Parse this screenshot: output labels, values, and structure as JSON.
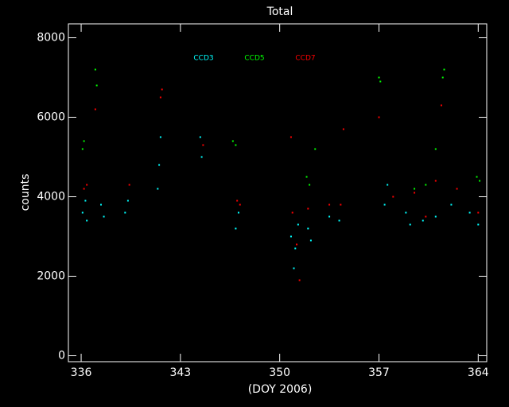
{
  "chart_data": {
    "type": "scatter",
    "title": "Total",
    "x_label": "(DOY 2006)",
    "y_label": "counts",
    "xlim": [
      335.1,
      364.6
    ],
    "ylim": [
      -150,
      8350
    ],
    "xticks": [
      336,
      343,
      350,
      357,
      364
    ],
    "yticks": [
      0,
      2000,
      4000,
      6000,
      8000
    ],
    "series": [
      {
        "name": "CCD3",
        "color": "#00ffff",
        "x": [
          336.1,
          336.3,
          336.4,
          337.4,
          337.6,
          339.1,
          339.3,
          341.4,
          341.5,
          341.6,
          344.4,
          344.5,
          346.9,
          347.1,
          350.8,
          351.0,
          351.1,
          351.3,
          352.0,
          352.2,
          353.5,
          354.2,
          357.4,
          357.6,
          358.9,
          359.2,
          360.1,
          361.0,
          362.1,
          363.4,
          364.0
        ],
        "values": [
          3600,
          3900,
          3400,
          3800,
          3500,
          3600,
          3900,
          4200,
          4800,
          5500,
          5500,
          5000,
          3200,
          3600,
          3000,
          2200,
          2700,
          3300,
          3200,
          2900,
          3500,
          3400,
          3800,
          4300,
          3600,
          3300,
          3400,
          3500,
          3800,
          3600,
          3300
        ]
      },
      {
        "name": "CCD5",
        "color": "#00ff00",
        "x": [
          336.1,
          336.2,
          337.0,
          337.1,
          346.7,
          346.9,
          351.9,
          352.1,
          352.5,
          357.0,
          357.1,
          359.5,
          360.3,
          361.0,
          361.5,
          361.6,
          363.9,
          364.1
        ],
        "values": [
          5200,
          5400,
          7200,
          6800,
          5400,
          5300,
          4500,
          4300,
          5200,
          7000,
          6900,
          4200,
          4300,
          5200,
          7000,
          7200,
          4500,
          4400
        ]
      },
      {
        "name": "CCD7",
        "color": "#ff0000",
        "x": [
          336.2,
          336.4,
          337.0,
          339.4,
          341.6,
          341.7,
          344.6,
          347.0,
          347.2,
          350.8,
          350.9,
          351.2,
          351.4,
          352.0,
          353.5,
          354.3,
          354.5,
          357.0,
          358.0,
          359.5,
          360.3,
          361.0,
          361.4,
          362.5,
          364.0
        ],
        "values": [
          4200,
          4300,
          6200,
          4300,
          6500,
          6700,
          5300,
          3900,
          3800,
          5500,
          3600,
          2800,
          1900,
          3700,
          3800,
          3800,
          5700,
          6000,
          4000,
          4100,
          3500,
          4400,
          6300,
          4200,
          3600
        ]
      }
    ]
  }
}
